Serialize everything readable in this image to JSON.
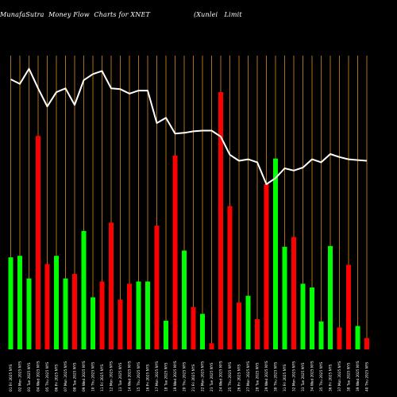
{
  "title": "MunafaSutra  Money Flow  Charts for XNET                    (Xunlei   Limit",
  "colors": {
    "background": "#000000",
    "up": "#00ff00",
    "down": "#ff0000",
    "gridline": "#d98c1a",
    "price_line": "#ffffff"
  },
  "chart_data": {
    "type": "bar",
    "title": "MunafaSutra  Money Flow  Charts for XNET                    (Xunlei   Limit",
    "categories": [
      "01 Fri 2025 NYS",
      "02 Mon 2025 NYS",
      "03 Tue 2025 NYS",
      "04 Wed 2025 NYS",
      "05 Thu 2025 NYS",
      "06 Fri 2025 NYS",
      "07 Mon 2025 NYS",
      "08 Tue 2025 NYS",
      "09 Wed 2025 NYS",
      "10 Thu 2025 NYS",
      "11 Fri 2025 NYS",
      "12 Mon 2025 NYS",
      "13 Tue 2025 NYS",
      "14 Wed 2025 NYS",
      "15 Thu 2025 NYS",
      "16 Fri 2025 NYS",
      "17 Mon 2025 NYS",
      "18 Tue 2025 NYS",
      "19 Wed 2025 NYS",
      "20 Thu 2025 NYS",
      "21 Fri 2025 NYS",
      "22 Mon 2025 NYS",
      "23 Tue 2025 NYS",
      "24 Wed 2025 NYS",
      "25 Thu 2025 NYS",
      "26 Fri 2025 NYS",
      "27 Mon 2025 NYS",
      "28 Tue 2025 NYS",
      "29 Wed 2025 NYS",
      "30 Thu 2025 NYS",
      "31 Fri 2025 NYS",
      "32 Mon 2025 NYS",
      "33 Tue 2025 NYS",
      "34 Wed 2025 NYS",
      "35 Thu 2025 NYS",
      "36 Fri 2025 NYS",
      "37 Mon 2025 NYS",
      "38 Tue 2025 NYS",
      "39 Wed 2025 NYS",
      "40 Thu 2025 NYS"
    ],
    "volumes": [
      122,
      124,
      94,
      283,
      113,
      124,
      94,
      100,
      157,
      69,
      90,
      168,
      66,
      87,
      90,
      90,
      164,
      38,
      257,
      131,
      56,
      47,
      8,
      341,
      190,
      62,
      71,
      40,
      219,
      253,
      136,
      149,
      87,
      82,
      37,
      137,
      29,
      112,
      31,
      15
    ],
    "directions": [
      "up",
      "up",
      "up",
      "down",
      "down",
      "up",
      "up",
      "down",
      "up",
      "up",
      "down",
      "down",
      "down",
      "down",
      "up",
      "up",
      "down",
      "up",
      "down",
      "up",
      "down",
      "up",
      "down",
      "down",
      "down",
      "down",
      "up",
      "down",
      "down",
      "up",
      "up",
      "down",
      "up",
      "up",
      "up",
      "up",
      "down",
      "down",
      "up",
      "down"
    ],
    "price": [
      358,
      352,
      372,
      346,
      322,
      341,
      346,
      324,
      357,
      365,
      369,
      346,
      345,
      339,
      343,
      343,
      300,
      307,
      286,
      287,
      289,
      290,
      290,
      282,
      258,
      250,
      252,
      248,
      219,
      227,
      240,
      237,
      241,
      252,
      248,
      259,
      255,
      252,
      251,
      250
    ],
    "ylim": [
      0,
      400
    ],
    "grid": true
  }
}
